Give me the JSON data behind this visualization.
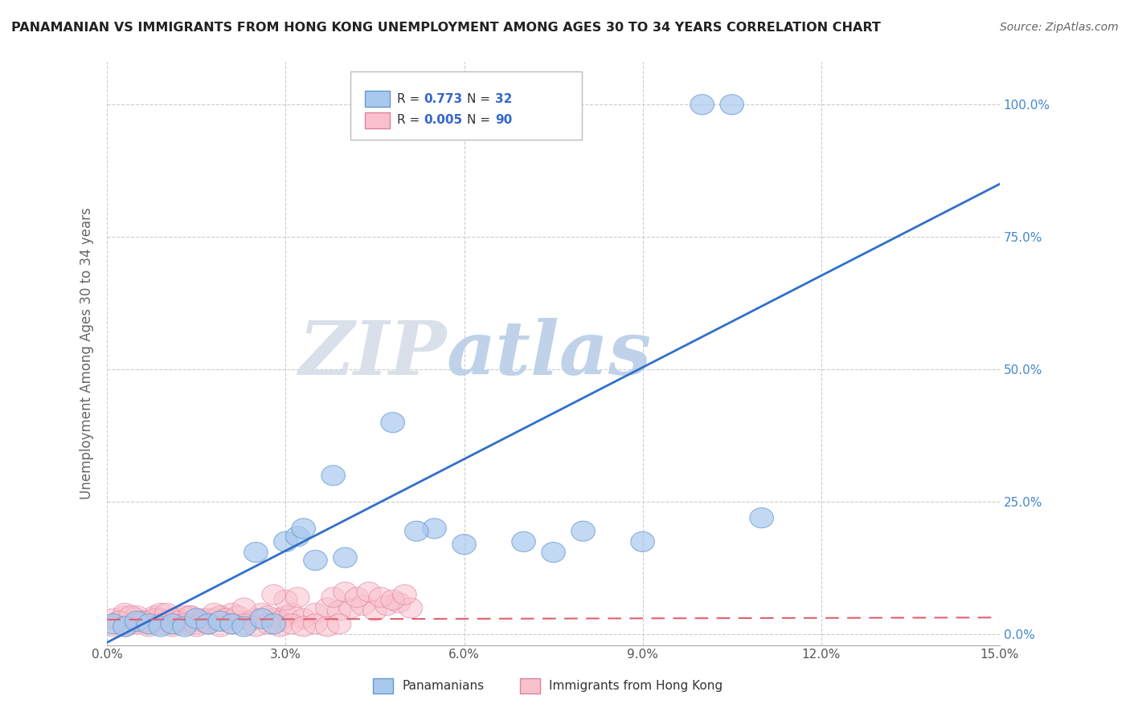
{
  "title": "PANAMANIAN VS IMMIGRANTS FROM HONG KONG UNEMPLOYMENT AMONG AGES 30 TO 34 YEARS CORRELATION CHART",
  "source": "Source: ZipAtlas.com",
  "ylabel": "Unemployment Among Ages 30 to 34 years",
  "xlim": [
    0.0,
    0.15
  ],
  "ylim": [
    -0.02,
    1.08
  ],
  "xticks": [
    0.0,
    0.03,
    0.06,
    0.09,
    0.12,
    0.15
  ],
  "xtick_labels": [
    "0.0%",
    "3.0%",
    "6.0%",
    "9.0%",
    "12.0%",
    "15.0%"
  ],
  "ytick_labels": [
    "0.0%",
    "25.0%",
    "50.0%",
    "75.0%",
    "100.0%"
  ],
  "yticks": [
    0.0,
    0.25,
    0.5,
    0.75,
    1.0
  ],
  "blue_R": 0.773,
  "blue_N": 32,
  "pink_R": 0.005,
  "pink_N": 90,
  "blue_color": "#A8C8EE",
  "blue_edge_color": "#6699CC",
  "pink_color": "#F8C0CC",
  "pink_edge_color": "#E080A0",
  "blue_line_color": "#3070C8",
  "pink_line_color": "#E06070",
  "watermark_zip": "ZIP",
  "watermark_atlas": "atlas",
  "legend_blue_label": "Panamanians",
  "legend_pink_label": "Immigrants from Hong Kong",
  "blue_line_x0": 0.0,
  "blue_line_y0": -0.015,
  "blue_line_x1": 0.15,
  "blue_line_y1": 0.85,
  "pink_line_x0": 0.0,
  "pink_line_y0": 0.028,
  "pink_line_x1": 0.15,
  "pink_line_y1": 0.032,
  "blue_pts_x": [
    0.001,
    0.003,
    0.005,
    0.007,
    0.009,
    0.011,
    0.013,
    0.015,
    0.017,
    0.019,
    0.021,
    0.023,
    0.026,
    0.028,
    0.03,
    0.032,
    0.033,
    0.025,
    0.035,
    0.04,
    0.038,
    0.06,
    0.07,
    0.075,
    0.055,
    0.048,
    0.052,
    0.09,
    0.1,
    0.105,
    0.08,
    0.11
  ],
  "blue_pts_y": [
    0.02,
    0.015,
    0.025,
    0.02,
    0.015,
    0.02,
    0.015,
    0.03,
    0.02,
    0.025,
    0.02,
    0.015,
    0.03,
    0.02,
    0.175,
    0.185,
    0.2,
    0.155,
    0.14,
    0.145,
    0.3,
    0.17,
    0.175,
    0.155,
    0.2,
    0.4,
    0.195,
    0.175,
    1.0,
    1.0,
    0.195,
    0.22
  ],
  "pink_pts_x": [
    0.001,
    0.002,
    0.003,
    0.004,
    0.005,
    0.006,
    0.007,
    0.008,
    0.009,
    0.01,
    0.011,
    0.012,
    0.013,
    0.014,
    0.015,
    0.016,
    0.017,
    0.018,
    0.019,
    0.02,
    0.003,
    0.005,
    0.007,
    0.009,
    0.011,
    0.013,
    0.015,
    0.017,
    0.019,
    0.021,
    0.002,
    0.004,
    0.006,
    0.008,
    0.01,
    0.012,
    0.014,
    0.016,
    0.018,
    0.02,
    0.022,
    0.024,
    0.026,
    0.028,
    0.03,
    0.025,
    0.027,
    0.029,
    0.031,
    0.033,
    0.023,
    0.035,
    0.037,
    0.039,
    0.041,
    0.043,
    0.045,
    0.047,
    0.049,
    0.051,
    0.001,
    0.003,
    0.005,
    0.007,
    0.009,
    0.011,
    0.013,
    0.015,
    0.017,
    0.019,
    0.021,
    0.023,
    0.025,
    0.027,
    0.029,
    0.031,
    0.033,
    0.035,
    0.037,
    0.039,
    0.038,
    0.04,
    0.042,
    0.044,
    0.046,
    0.048,
    0.05,
    0.03,
    0.028,
    0.032
  ],
  "pink_pts_y": [
    0.03,
    0.025,
    0.035,
    0.02,
    0.03,
    0.025,
    0.02,
    0.035,
    0.03,
    0.025,
    0.02,
    0.03,
    0.025,
    0.035,
    0.02,
    0.03,
    0.025,
    0.03,
    0.035,
    0.025,
    0.04,
    0.035,
    0.025,
    0.04,
    0.03,
    0.035,
    0.025,
    0.03,
    0.035,
    0.04,
    0.025,
    0.035,
    0.025,
    0.03,
    0.04,
    0.025,
    0.035,
    0.025,
    0.04,
    0.03,
    0.035,
    0.025,
    0.04,
    0.03,
    0.035,
    0.03,
    0.035,
    0.025,
    0.04,
    0.03,
    0.05,
    0.04,
    0.05,
    0.045,
    0.05,
    0.055,
    0.045,
    0.055,
    0.06,
    0.05,
    0.015,
    0.015,
    0.02,
    0.015,
    0.02,
    0.015,
    0.02,
    0.015,
    0.02,
    0.015,
    0.02,
    0.02,
    0.015,
    0.02,
    0.015,
    0.02,
    0.015,
    0.02,
    0.015,
    0.02,
    0.07,
    0.08,
    0.07,
    0.08,
    0.07,
    0.065,
    0.075,
    0.065,
    0.075,
    0.07
  ]
}
